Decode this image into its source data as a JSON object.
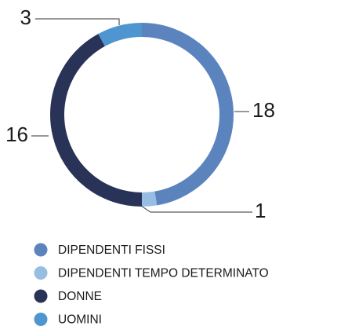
{
  "chart_data": {
    "type": "donut",
    "categories": [
      "DIPENDENTI FISSI",
      "DIPENDENTI TEMPO DETERMINATO",
      "DONNE",
      "UOMINI"
    ],
    "values": [
      18,
      1,
      16,
      3
    ],
    "colors": [
      "#5b84bf",
      "#98bde3",
      "#283357",
      "#4f96d0"
    ]
  }
}
